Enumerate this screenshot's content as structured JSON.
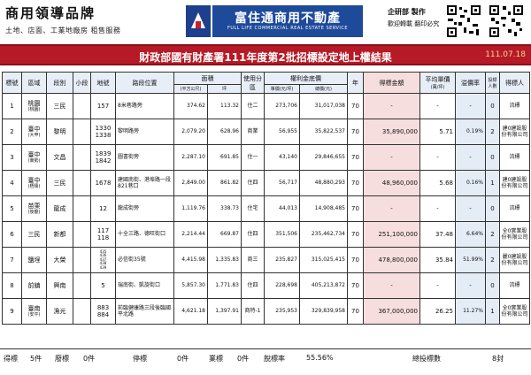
{
  "brand_left": {
    "title": "商用領導品牌",
    "subtitle": "土地、店面、工業地廠房 租售服務"
  },
  "brand_center": {
    "name": "富住通商用不動產",
    "english": "FULL LIFE COMMERCIAL REAL ESTATE SERVICE"
  },
  "brand_right": {
    "line1": "企研部 製作",
    "line2": "歡迎轉載 翻印必究"
  },
  "title": {
    "text": "財政部國有財產署111年度第2批招標設定地上權結果",
    "date": "111.07.18"
  },
  "table": {
    "headers": {
      "no": "標號",
      "district": "區域",
      "section": "段別",
      "subsection": "小段",
      "lot": "地號",
      "road": "路段位置",
      "area": "面積",
      "area_sqm": "(平方公尺)",
      "area_ping": "坪",
      "zoning": "使用分區",
      "bid_floor": "權利金底價",
      "unit_price": "單價(元/坪)",
      "total_price": "總價(元)",
      "years": "年",
      "winning_amount": "得標金額",
      "avg_unit": "平均單價",
      "avg_unit_unit": "(萬/坪)",
      "premium": "溢價率",
      "bidders": "投標人數",
      "winner": "得標人"
    },
    "rows": [
      {
        "no": "1",
        "district": "桃園",
        "district_sub": "(桃園)",
        "section": "三民",
        "subsection": "",
        "lot": "157",
        "road": "8米巷路旁",
        "sqm": "374.62",
        "ping": "113.32",
        "zoning": "住二",
        "unit": "273,706",
        "total": "31,017,038",
        "years": "70",
        "win": "-",
        "avg": "-",
        "premium": "-",
        "bidders": "0",
        "winner": "流標"
      },
      {
        "no": "2",
        "district": "臺中",
        "district_sub": "(大甲)",
        "section": "黎明",
        "subsection": "",
        "lot": "1330\n1338",
        "road": "黎明路旁",
        "sqm": "2,079.20",
        "ping": "628.96",
        "zoning": "商業",
        "unit": "56,955",
        "total": "35,822,537",
        "years": "70",
        "win": "35,890,000",
        "avg": "5.71",
        "premium": "0.19%",
        "bidders": "2",
        "winner": "建0建設股份有限公司"
      },
      {
        "no": "3",
        "district": "臺中",
        "district_sub": "(東勢)",
        "section": "文昌",
        "subsection": "",
        "lot": "1839\n1842",
        "road": "圖書街旁",
        "sqm": "2,287.10",
        "ping": "691.85",
        "zoning": "住一",
        "unit": "43,140",
        "total": "29,846,655",
        "years": "70",
        "win": "-",
        "avg": "-",
        "premium": "-",
        "bidders": "0",
        "winner": "流標"
      },
      {
        "no": "4",
        "district": "臺中",
        "district_sub": "(梧棲)",
        "section": "三民",
        "subsection": "",
        "lot": "1678",
        "road": "建國南街、港埠路一段821巷口",
        "sqm": "2,849.00",
        "ping": "861.82",
        "zoning": "住四",
        "unit": "56,717",
        "total": "48,880,293",
        "years": "70",
        "win": "48,960,000",
        "avg": "5.68",
        "premium": "0.16%",
        "bidders": "1",
        "winner": "建0建設股份有限公司"
      },
      {
        "no": "5",
        "district": "苗栗",
        "district_sub": "(後龍)",
        "section": "龍成",
        "subsection": "",
        "lot": "12",
        "road": "龍成街旁",
        "sqm": "1,119.76",
        "ping": "338.73",
        "zoning": "住宅",
        "unit": "44,013",
        "total": "14,908,485",
        "years": "70",
        "win": "-",
        "avg": "-",
        "premium": "-",
        "bidders": "0",
        "winner": "流標"
      },
      {
        "no": "6",
        "district": "三民",
        "district_sub": "",
        "section": "新都",
        "subsection": "",
        "lot": "117\n118",
        "road": "十全三路、德旺街口",
        "sqm": "2,214.44",
        "ping": "669.87",
        "zoning": "住四",
        "unit": "351,506",
        "total": "235,462,734",
        "years": "70",
        "win": "251,100,000",
        "avg": "37.48",
        "premium": "6.64%",
        "bidders": "2",
        "winner": "全0實業股份有限公司"
      },
      {
        "no": "7",
        "district": "鹽埕",
        "district_sub": "",
        "section": "大榮",
        "subsection": "",
        "lot": "435\n436\n437\n438\n439",
        "road": "必信街35號",
        "sqm": "4,415.98",
        "ping": "1,335.83",
        "zoning": "商三",
        "unit": "235,827",
        "total": "315,025,415",
        "years": "70",
        "win": "478,800,000",
        "avg": "35.84",
        "premium": "51.99%",
        "bidders": "2",
        "winner": "麗0建設股份有限公司"
      },
      {
        "no": "8",
        "district": "前鎮",
        "district_sub": "",
        "section": "興南",
        "subsection": "",
        "lot": "5",
        "road": "瑞南街、凱旋街口",
        "sqm": "5,857.30",
        "ping": "1,771.83",
        "zoning": "住四",
        "unit": "228,698",
        "total": "405,213,872",
        "years": "70",
        "win": "-",
        "avg": "-",
        "premium": "-",
        "bidders": "0",
        "winner": "流標"
      },
      {
        "no": "9",
        "district": "臺南",
        "district_sub": "(安平)",
        "section": "漁光",
        "subsection": "",
        "lot": "883\n884",
        "road": "前臨健康路三段後臨國平北路",
        "sqm": "4,621.18",
        "ping": "1,397.91",
        "zoning": "商特-1",
        "unit": "235,953",
        "total": "329,839,958",
        "years": "70",
        "win": "367,000,000",
        "avg": "26.25",
        "premium": "11.27%",
        "bidders": "1",
        "winner": "全0實業股份有限公司"
      }
    ]
  },
  "footer": {
    "won_label": "得標",
    "won_value": "5件",
    "void_label": "廢標",
    "void_value": "0件",
    "stopped_label": "停標",
    "stopped_value": "0件",
    "cancelled_label": "業標",
    "cancelled_value": "0件",
    "rate_label": "脫標率",
    "rate_value": "55.56%",
    "bid_count_label": "總投標數",
    "bid_count_value": "8封"
  },
  "colors": {
    "title_bar": "#b61a26",
    "brand_blue": "#1e4a9a",
    "winning_col": "#f7dede",
    "header_bg": "#e8eef7"
  }
}
